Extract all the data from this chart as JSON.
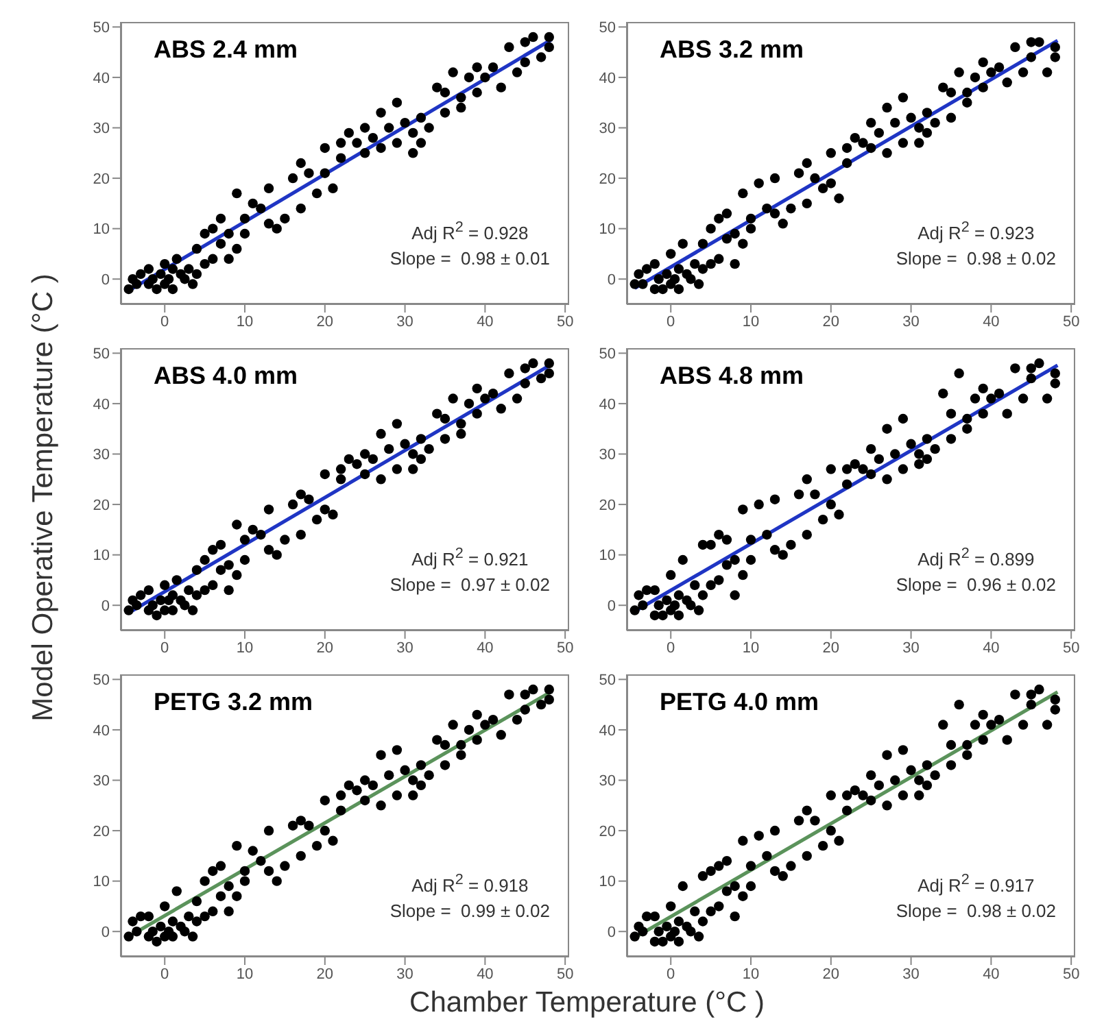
{
  "chart_data": [
    {
      "type": "scatter",
      "title": "ABS 2.4 mm",
      "ylabel": "Model Operative Temperature (°C )",
      "annotations": [
        "Adj R$^{2}$ = 0.928",
        "Slope =  0.98 ± 0.01"
      ],
      "xlim": [
        -5.5,
        50.5
      ],
      "xticks": [
        0,
        10,
        20,
        30,
        40,
        50
      ],
      "ylim": [
        -5,
        51
      ],
      "yticks": [
        0,
        10,
        20,
        30,
        40,
        50
      ],
      "series": [
        {
          "type": "scatter",
          "color": "#000000",
          "marker": "circle",
          "x": [
            -4.5,
            -4,
            -3.5,
            -3,
            -2,
            -2,
            -1.5,
            -1,
            -0.5,
            0,
            0,
            0.5,
            1,
            1,
            1.5,
            2,
            2.5,
            3,
            3.5,
            4,
            4,
            5,
            5,
            6,
            6,
            7,
            7,
            8,
            8,
            9,
            9,
            10,
            10,
            11,
            12,
            13,
            13,
            14,
            15,
            16,
            17,
            17,
            18,
            19,
            20,
            20,
            21,
            22,
            22,
            23,
            24,
            25,
            25,
            26,
            27,
            27,
            28,
            29,
            29,
            30,
            31,
            31,
            32,
            32,
            33,
            34,
            35,
            35,
            36,
            37,
            37,
            38,
            39,
            39,
            40,
            41,
            42,
            43,
            44,
            45,
            45,
            46,
            47,
            48,
            48
          ],
          "values": [
            -2,
            0,
            -1,
            1,
            -1,
            2,
            0,
            -2,
            1,
            3,
            -1,
            0,
            2,
            -2,
            4,
            1,
            0,
            2,
            -1,
            1,
            6,
            3,
            9,
            4,
            10,
            7,
            12,
            9,
            4,
            6,
            17,
            9,
            12,
            15,
            14,
            18,
            11,
            10,
            12,
            20,
            23,
            14,
            21,
            17,
            21,
            26,
            18,
            27,
            24,
            29,
            27,
            30,
            25,
            28,
            26,
            33,
            30,
            27,
            35,
            31,
            25,
            29,
            27,
            32,
            30,
            38,
            37,
            33,
            41,
            34,
            36,
            40,
            42,
            37,
            40,
            42,
            38,
            46,
            41,
            43,
            47,
            48,
            44,
            46,
            48
          ]
        },
        {
          "type": "line",
          "color": "#1f35c4",
          "x": [
            -4.5,
            48.3
          ],
          "values": [
            -2.3,
            47.5
          ]
        }
      ]
    },
    {
      "type": "scatter",
      "title": "ABS 3.2 mm",
      "annotations": [
        "Adj R$^{2}$ = 0.923",
        "Slope =  0.98 ± 0.02"
      ],
      "xlim": [
        -5.5,
        50.5
      ],
      "xticks": [
        0,
        10,
        20,
        30,
        40,
        50
      ],
      "ylim": [
        -5,
        51
      ],
      "yticks": [
        0,
        10,
        20,
        30,
        40,
        50
      ],
      "series": [
        {
          "type": "scatter",
          "color": "#000000",
          "marker": "circle",
          "x": [
            -4.5,
            -4,
            -3.5,
            -3,
            -2,
            -2,
            -1.5,
            -1,
            -0.5,
            0,
            0,
            0.5,
            1,
            1,
            1.5,
            2,
            2.5,
            3,
            3.5,
            4,
            4,
            5,
            5,
            6,
            6,
            7,
            7,
            8,
            8,
            9,
            9,
            10,
            10,
            11,
            12,
            13,
            13,
            14,
            15,
            16,
            17,
            17,
            18,
            19,
            20,
            20,
            21,
            22,
            22,
            23,
            24,
            25,
            25,
            26,
            27,
            27,
            28,
            29,
            29,
            30,
            31,
            31,
            32,
            32,
            33,
            34,
            35,
            35,
            36,
            37,
            37,
            38,
            39,
            39,
            40,
            41,
            42,
            43,
            44,
            45,
            45,
            46,
            47,
            48,
            48
          ],
          "values": [
            -1,
            1,
            -1,
            2,
            -2,
            3,
            0,
            -2,
            1,
            5,
            -1,
            0,
            2,
            -2,
            7,
            1,
            0,
            3,
            -1,
            2,
            7,
            3,
            10,
            4,
            12,
            8,
            13,
            9,
            3,
            7,
            17,
            10,
            12,
            19,
            14,
            20,
            13,
            11,
            14,
            21,
            23,
            15,
            20,
            18,
            19,
            25,
            16,
            26,
            23,
            28,
            27,
            31,
            26,
            29,
            25,
            34,
            31,
            27,
            36,
            32,
            27,
            30,
            29,
            33,
            31,
            38,
            37,
            32,
            41,
            35,
            37,
            40,
            43,
            38,
            41,
            42,
            39,
            46,
            41,
            44,
            47,
            47,
            41,
            46,
            44
          ]
        },
        {
          "type": "line",
          "color": "#1f35c4",
          "x": [
            -4.5,
            48.3
          ],
          "values": [
            -1.8,
            47.3
          ]
        }
      ]
    },
    {
      "type": "scatter",
      "title": "ABS 4.0 mm",
      "annotations": [
        "Adj R$^{2}$ = 0.921",
        "Slope =  0.97 ± 0.02"
      ],
      "xlim": [
        -5.5,
        50.5
      ],
      "xticks": [
        0,
        10,
        20,
        30,
        40,
        50
      ],
      "ylim": [
        -5,
        51
      ],
      "yticks": [
        0,
        10,
        20,
        30,
        40,
        50
      ],
      "series": [
        {
          "type": "scatter",
          "color": "#000000",
          "marker": "circle",
          "x": [
            -4.5,
            -4,
            -3.5,
            -3,
            -2,
            -2,
            -1.5,
            -1,
            -0.5,
            0,
            0,
            0.5,
            1,
            1,
            1.5,
            2,
            2.5,
            3,
            3.5,
            4,
            4,
            5,
            5,
            6,
            6,
            7,
            7,
            8,
            8,
            9,
            9,
            10,
            10,
            11,
            12,
            13,
            13,
            14,
            15,
            16,
            17,
            17,
            18,
            19,
            20,
            20,
            21,
            22,
            22,
            23,
            24,
            25,
            25,
            26,
            27,
            27,
            28,
            29,
            29,
            30,
            31,
            31,
            32,
            32,
            33,
            34,
            35,
            35,
            36,
            37,
            37,
            38,
            39,
            39,
            40,
            41,
            42,
            43,
            44,
            45,
            45,
            46,
            47,
            48,
            48
          ],
          "values": [
            -1,
            1,
            0,
            2,
            -1,
            3,
            0,
            -2,
            1,
            4,
            -1,
            1,
            2,
            -1,
            5,
            1,
            0,
            3,
            -1,
            2,
            7,
            3,
            9,
            4,
            11,
            7,
            12,
            8,
            3,
            6,
            16,
            9,
            13,
            15,
            14,
            19,
            11,
            10,
            13,
            20,
            22,
            14,
            21,
            17,
            19,
            26,
            18,
            27,
            25,
            29,
            28,
            30,
            26,
            29,
            25,
            34,
            31,
            27,
            36,
            32,
            27,
            30,
            29,
            33,
            31,
            38,
            37,
            33,
            41,
            34,
            36,
            40,
            43,
            38,
            41,
            42,
            39,
            46,
            41,
            44,
            47,
            48,
            45,
            46,
            48
          ]
        },
        {
          "type": "line",
          "color": "#1f35c4",
          "x": [
            -4.5,
            48.3
          ],
          "values": [
            -1.5,
            47.8
          ]
        }
      ]
    },
    {
      "type": "scatter",
      "title": "ABS 4.8 mm",
      "annotations": [
        "Adj R$^{2}$ = 0.899",
        "Slope =  0.96 ± 0.02"
      ],
      "xlim": [
        -5.5,
        50.5
      ],
      "xticks": [
        0,
        10,
        20,
        30,
        40,
        50
      ],
      "ylim": [
        -5,
        51
      ],
      "yticks": [
        0,
        10,
        20,
        30,
        40,
        50
      ],
      "series": [
        {
          "type": "scatter",
          "color": "#000000",
          "marker": "circle",
          "x": [
            -4.5,
            -4,
            -3.5,
            -3,
            -2,
            -2,
            -1.5,
            -1,
            -0.5,
            0,
            0,
            0.5,
            1,
            1,
            1.5,
            2,
            2.5,
            3,
            3.5,
            4,
            4,
            5,
            5,
            6,
            6,
            7,
            7,
            8,
            8,
            9,
            9,
            10,
            10,
            11,
            12,
            13,
            13,
            14,
            15,
            16,
            17,
            17,
            18,
            19,
            20,
            20,
            21,
            22,
            22,
            23,
            24,
            25,
            25,
            26,
            27,
            27,
            28,
            29,
            29,
            30,
            31,
            31,
            32,
            32,
            33,
            34,
            35,
            35,
            36,
            37,
            37,
            38,
            39,
            39,
            40,
            41,
            42,
            43,
            44,
            45,
            45,
            46,
            47,
            48,
            48
          ],
          "values": [
            -1,
            2,
            0,
            3,
            -2,
            3,
            0,
            -2,
            1,
            6,
            -1,
            0,
            2,
            -2,
            9,
            1,
            0,
            4,
            -1,
            2,
            12,
            4,
            12,
            5,
            14,
            8,
            13,
            9,
            2,
            6,
            19,
            9,
            13,
            20,
            14,
            21,
            11,
            10,
            12,
            22,
            25,
            14,
            22,
            17,
            20,
            27,
            18,
            27,
            24,
            28,
            27,
            31,
            26,
            29,
            25,
            35,
            30,
            27,
            37,
            32,
            28,
            30,
            29,
            33,
            31,
            42,
            38,
            33,
            46,
            35,
            37,
            41,
            43,
            38,
            41,
            42,
            38,
            47,
            41,
            45,
            47,
            48,
            41,
            46,
            44
          ]
        },
        {
          "type": "line",
          "color": "#1f35c4",
          "x": [
            -4.5,
            48.3
          ],
          "values": [
            -1.2,
            47.6
          ]
        }
      ]
    },
    {
      "type": "scatter",
      "title": "PETG 3.2 mm",
      "xlabel": "Chamber Temperature (°C )",
      "annotations": [
        "Adj R$^{2}$ = 0.918",
        "Slope =  0.99 ± 0.02"
      ],
      "xlim": [
        -5.5,
        50.5
      ],
      "xticks": [
        0,
        10,
        20,
        30,
        40,
        50
      ],
      "ylim": [
        -5,
        51
      ],
      "yticks": [
        0,
        10,
        20,
        30,
        40,
        50
      ],
      "series": [
        {
          "type": "scatter",
          "color": "#000000",
          "marker": "circle",
          "x": [
            -4.5,
            -4,
            -3.5,
            -3,
            -2,
            -2,
            -1.5,
            -1,
            -0.5,
            0,
            0,
            0.5,
            1,
            1,
            1.5,
            2,
            2.5,
            3,
            3.5,
            4,
            4,
            5,
            5,
            6,
            6,
            7,
            7,
            8,
            8,
            9,
            9,
            10,
            10,
            11,
            12,
            13,
            13,
            14,
            15,
            16,
            17,
            17,
            18,
            19,
            20,
            20,
            21,
            22,
            22,
            23,
            24,
            25,
            25,
            26,
            27,
            27,
            28,
            29,
            29,
            30,
            31,
            31,
            32,
            32,
            33,
            34,
            35,
            35,
            36,
            37,
            37,
            38,
            39,
            39,
            40,
            41,
            42,
            43,
            44,
            45,
            45,
            46,
            47,
            48,
            48
          ],
          "values": [
            -1,
            2,
            0,
            3,
            -1,
            3,
            0,
            -2,
            1,
            5,
            -1,
            0,
            2,
            -1,
            8,
            1,
            0,
            3,
            -1,
            2,
            6,
            3,
            10,
            4,
            12,
            7,
            13,
            9,
            4,
            7,
            17,
            10,
            12,
            16,
            14,
            20,
            12,
            10,
            13,
            21,
            22,
            15,
            21,
            17,
            20,
            26,
            18,
            27,
            24,
            29,
            28,
            30,
            26,
            29,
            25,
            35,
            31,
            27,
            36,
            32,
            27,
            30,
            29,
            33,
            31,
            38,
            37,
            33,
            41,
            35,
            37,
            40,
            43,
            38,
            41,
            42,
            39,
            47,
            42,
            44,
            47,
            48,
            45,
            46,
            48
          ]
        },
        {
          "type": "line",
          "color": "#5b935b",
          "x": [
            -4.5,
            48.3
          ],
          "values": [
            -1,
            47.6
          ]
        }
      ]
    },
    {
      "type": "scatter",
      "title": "PETG 4.0 mm",
      "annotations": [
        "Adj R$^{2}$ = 0.917",
        "Slope =  0.98 ± 0.02"
      ],
      "xlim": [
        -5.5,
        50.5
      ],
      "xticks": [
        0,
        10,
        20,
        30,
        40,
        50
      ],
      "ylim": [
        -5,
        51
      ],
      "yticks": [
        0,
        10,
        20,
        30,
        40,
        50
      ],
      "series": [
        {
          "type": "scatter",
          "color": "#000000",
          "marker": "circle",
          "x": [
            -4.5,
            -4,
            -3.5,
            -3,
            -2,
            -2,
            -1.5,
            -1,
            -0.5,
            0,
            0,
            0.5,
            1,
            1,
            1.5,
            2,
            2.5,
            3,
            3.5,
            4,
            4,
            5,
            5,
            6,
            6,
            7,
            7,
            8,
            8,
            9,
            9,
            10,
            10,
            11,
            12,
            13,
            13,
            14,
            15,
            16,
            17,
            17,
            18,
            19,
            20,
            20,
            21,
            22,
            22,
            23,
            24,
            25,
            25,
            26,
            27,
            27,
            28,
            29,
            29,
            30,
            31,
            31,
            32,
            32,
            33,
            34,
            35,
            35,
            36,
            37,
            37,
            38,
            39,
            39,
            40,
            41,
            42,
            43,
            44,
            45,
            45,
            46,
            47,
            48,
            48
          ],
          "values": [
            -1,
            1,
            0,
            3,
            -2,
            3,
            0,
            -2,
            1,
            5,
            -1,
            0,
            2,
            -2,
            9,
            1,
            0,
            4,
            -1,
            2,
            11,
            4,
            12,
            5,
            13,
            8,
            14,
            9,
            3,
            7,
            18,
            9,
            13,
            19,
            15,
            20,
            12,
            11,
            13,
            22,
            24,
            15,
            22,
            17,
            20,
            27,
            18,
            27,
            24,
            28,
            27,
            31,
            26,
            29,
            25,
            35,
            30,
            27,
            36,
            32,
            27,
            30,
            29,
            33,
            31,
            41,
            37,
            33,
            45,
            35,
            37,
            41,
            43,
            38,
            41,
            42,
            38,
            47,
            41,
            45,
            47,
            48,
            41,
            46,
            44
          ]
        },
        {
          "type": "line",
          "color": "#5b935b",
          "x": [
            -4.5,
            48.3
          ],
          "values": [
            -1.2,
            47.5
          ]
        }
      ]
    }
  ]
}
